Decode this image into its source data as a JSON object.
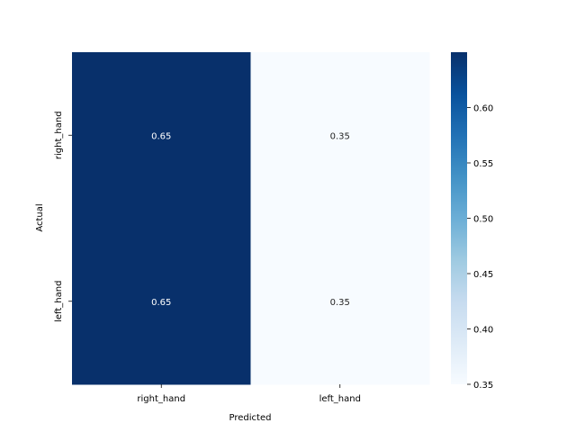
{
  "chart_data": {
    "type": "heatmap",
    "xlabel": "Predicted",
    "ylabel": "Actual",
    "x_categories": [
      "right_hand",
      "left_hand"
    ],
    "y_categories": [
      "right_hand",
      "left_hand"
    ],
    "values": [
      [
        0.65,
        0.35
      ],
      [
        0.65,
        0.35
      ]
    ],
    "annotations": [
      [
        "0.65",
        "0.35"
      ],
      [
        "0.65",
        "0.35"
      ]
    ],
    "colorbar": {
      "min": 0.35,
      "max": 0.65,
      "ticks": [
        0.35,
        0.4,
        0.45,
        0.5,
        0.55,
        0.6
      ],
      "tick_labels": [
        "0.35",
        "0.40",
        "0.45",
        "0.50",
        "0.55",
        "0.60"
      ],
      "colormap": "Blues"
    },
    "colors": {
      "low": "#f7fbff",
      "high": "#08306b",
      "text_on_dark": "#ffffff",
      "text_on_light": "#262626"
    }
  }
}
